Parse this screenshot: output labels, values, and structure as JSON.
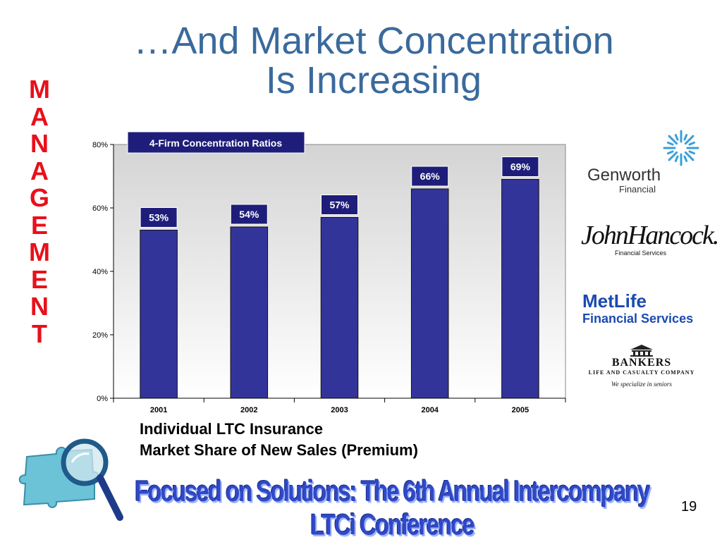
{
  "slide": {
    "title_line1": "…And Market Concentration",
    "title_line2": "Is Increasing",
    "side_word": [
      "M",
      "A",
      "N",
      "A",
      "G",
      "E",
      "M",
      "E",
      "N",
      "T"
    ],
    "caption_line1": "Individual LTC Insurance",
    "caption_line2": "Market Share of New Sales (Premium)",
    "footer": "Focused on Solutions:  The 6th Annual Intercompany LTCi Conference",
    "page_number": "19"
  },
  "logos": {
    "genworth": {
      "name": "Genworth",
      "sub": "Financial",
      "icon": "genworth-star-icon"
    },
    "hancock": {
      "name": "JohnHancock.",
      "sub": "Financial Services"
    },
    "metlife": {
      "name": "MetLife",
      "sub": "Financial Services"
    },
    "bankers": {
      "name": "BANKERS",
      "sub": "LIFE AND CASUALTY COMPANY",
      "tagline": "We specialize in seniors",
      "icon": "building-icon"
    },
    "magnifier": {
      "icon": "puzzle-magnifier-icon"
    }
  },
  "colors": {
    "title": "#3a6a9c",
    "side_word": "#e8101a",
    "bar": "#33349a",
    "label_box": "#1e1e7a",
    "footer": "#2f49c7"
  },
  "chart_data": {
    "type": "bar",
    "legend_box": "4-Firm Concentration Ratios",
    "categories": [
      "2001",
      "2002",
      "2003",
      "2004",
      "2005"
    ],
    "values": [
      53,
      54,
      57,
      66,
      69
    ],
    "data_labels": [
      "53%",
      "54%",
      "57%",
      "66%",
      "69%"
    ],
    "y_ticks": [
      0,
      20,
      40,
      60,
      80
    ],
    "y_tick_labels": [
      "0%",
      "20%",
      "40%",
      "60%",
      "80%"
    ],
    "ylim": [
      0,
      80
    ],
    "grid": false,
    "background": "gradient gray"
  }
}
